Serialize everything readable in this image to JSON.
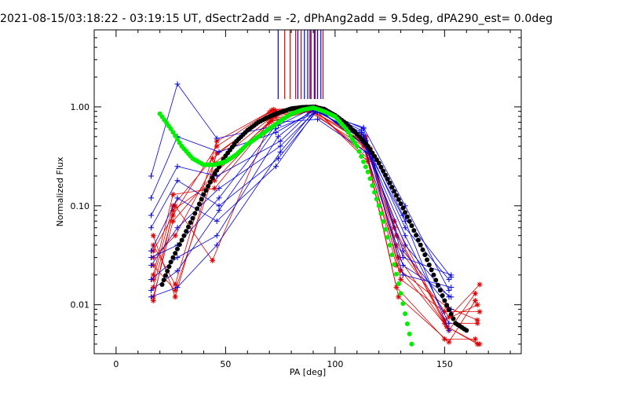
{
  "chart_data": {
    "type": "scatter",
    "title": "2021-08-15/03:18:22 - 03:19:15 UT, dSectr2add = -2, dPhAng2add = 9.5deg, dPA290_est=  0.0deg",
    "xlabel": "PA [deg]",
    "ylabel": "Normalized Flux",
    "xlim": [
      -10,
      185
    ],
    "ylim": [
      0.0032,
      6.0
    ],
    "yscale": "log",
    "grid": false,
    "legend": "none",
    "x_ticks": [
      {
        "value": 0,
        "label": "0"
      },
      {
        "value": 50,
        "label": "50"
      },
      {
        "value": 100,
        "label": "100"
      },
      {
        "value": 150,
        "label": "150"
      }
    ],
    "y_ticks": [
      {
        "value": 0.01,
        "label": "0.01"
      },
      {
        "value": 0.1,
        "label": "0.10"
      },
      {
        "value": 1.0,
        "label": "1.00"
      }
    ],
    "colors": {
      "red": "#dd0000",
      "blue": "#0000dd",
      "black": "#000000",
      "green": "#00ee00"
    },
    "vertical_lines": {
      "ymin": 1.2,
      "blue_x": [
        74,
        83,
        86,
        87.5,
        89,
        90.5,
        92,
        93.5
      ],
      "red_x": [
        77,
        79.5,
        82,
        84.5,
        88.5,
        91,
        94.5
      ]
    },
    "model_black": {
      "x": [
        21,
        25,
        30,
        35,
        40,
        45,
        50,
        55,
        60,
        65,
        70,
        75,
        80,
        85,
        90,
        95,
        100,
        105,
        110,
        115,
        120,
        125,
        130,
        135,
        140,
        145,
        150,
        155,
        160
      ],
      "y": [
        0.016,
        0.027,
        0.045,
        0.075,
        0.13,
        0.21,
        0.32,
        0.45,
        0.58,
        0.7,
        0.8,
        0.88,
        0.96,
        0.99,
        1.0,
        0.95,
        0.82,
        0.68,
        0.53,
        0.4,
        0.27,
        0.17,
        0.105,
        0.063,
        0.036,
        0.02,
        0.011,
        0.0065,
        0.0055
      ]
    },
    "model_green": {
      "x": [
        20,
        25,
        30,
        35,
        40,
        45,
        50,
        55,
        60,
        65,
        70,
        75,
        80,
        85,
        90,
        95,
        100,
        105,
        110,
        115,
        120,
        125,
        130,
        135
      ],
      "y": [
        0.85,
        0.6,
        0.4,
        0.3,
        0.26,
        0.26,
        0.28,
        0.33,
        0.42,
        0.5,
        0.6,
        0.72,
        0.85,
        0.93,
        0.98,
        0.9,
        0.8,
        0.6,
        0.4,
        0.22,
        0.1,
        0.04,
        0.013,
        0.004
      ]
    },
    "series": [
      {
        "color": "red",
        "x": [
          17,
          27,
          45,
          72,
          88,
          115,
          128,
          150,
          165
        ],
        "y": [
          0.03,
          0.05,
          0.27,
          0.82,
          0.95,
          0.34,
          0.05,
          0.007,
          0.01
        ]
      },
      {
        "color": "red",
        "x": [
          17,
          26,
          44,
          71,
          89,
          114,
          129,
          151,
          166
        ],
        "y": [
          0.012,
          0.07,
          0.2,
          0.75,
          0.92,
          0.46,
          0.03,
          0.006,
          0.004
        ]
      },
      {
        "color": "red",
        "x": [
          17,
          27,
          46,
          73,
          90,
          115,
          128,
          150,
          164
        ],
        "y": [
          0.05,
          0.012,
          0.34,
          0.9,
          0.98,
          0.28,
          0.015,
          0.0045,
          0.0045
        ]
      },
      {
        "color": "red",
        "x": [
          17,
          26,
          45,
          70,
          88,
          113,
          130,
          151,
          165
        ],
        "y": [
          0.02,
          0.13,
          0.15,
          0.7,
          0.9,
          0.4,
          0.022,
          0.0095,
          0.007
        ]
      },
      {
        "color": "red",
        "x": [
          17,
          27,
          44,
          72,
          91,
          116,
          128,
          152,
          166
        ],
        "y": [
          0.015,
          0.1,
          0.028,
          0.85,
          1.0,
          0.36,
          0.04,
          0.0075,
          0.016
        ]
      },
      {
        "color": "red",
        "x": [
          17,
          26,
          46,
          71,
          89,
          114,
          127,
          150,
          165
        ],
        "y": [
          0.035,
          0.08,
          0.4,
          0.92,
          0.96,
          0.5,
          0.06,
          0.0065,
          0.0065
        ]
      },
      {
        "color": "red",
        "x": [
          17,
          27,
          45,
          73,
          90,
          115,
          129,
          152,
          164
        ],
        "y": [
          0.025,
          0.014,
          0.22,
          0.8,
          0.97,
          0.3,
          0.012,
          0.0042,
          0.011
        ]
      },
      {
        "color": "red",
        "x": [
          17,
          26,
          44,
          70,
          88,
          113,
          128,
          151,
          165
        ],
        "y": [
          0.018,
          0.1,
          0.3,
          0.88,
          0.94,
          0.45,
          0.025,
          0.006,
          0.004
        ]
      },
      {
        "color": "red",
        "x": [
          17,
          27,
          46,
          72,
          91,
          116,
          130,
          150,
          166
        ],
        "y": [
          0.04,
          0.016,
          0.45,
          0.94,
          0.99,
          0.38,
          0.018,
          0.0085,
          0.0085
        ]
      },
      {
        "color": "red",
        "x": [
          17,
          26,
          45,
          71,
          89,
          114,
          127,
          152,
          164
        ],
        "y": [
          0.011,
          0.09,
          0.18,
          0.72,
          0.93,
          0.42,
          0.07,
          0.0055,
          0.013
        ]
      },
      {
        "color": "blue",
        "x": [
          16,
          28,
          46,
          74,
          90,
          112,
          132,
          152
        ],
        "y": [
          0.2,
          1.7,
          0.48,
          0.65,
          0.97,
          0.5,
          0.04,
          0.012
        ]
      },
      {
        "color": "blue",
        "x": [
          16,
          28,
          47,
          73,
          92,
          113,
          131,
          153
        ],
        "y": [
          0.12,
          0.5,
          0.35,
          0.55,
          0.96,
          0.6,
          0.03,
          0.02
        ]
      },
      {
        "color": "blue",
        "x": [
          16,
          28,
          46,
          75,
          91,
          112,
          132,
          152
        ],
        "y": [
          0.08,
          0.25,
          0.2,
          0.45,
          0.98,
          0.55,
          0.06,
          0.018
        ]
      },
      {
        "color": "blue",
        "x": [
          16,
          28,
          47,
          74,
          92,
          114,
          131,
          153
        ],
        "y": [
          0.06,
          0.18,
          0.1,
          0.3,
          0.92,
          0.45,
          0.02,
          0.015
        ]
      },
      {
        "color": "blue",
        "x": [
          16,
          28,
          46,
          73,
          91,
          113,
          132,
          152
        ],
        "y": [
          0.035,
          0.12,
          0.07,
          0.25,
          0.9,
          0.62,
          0.1,
          0.014
        ]
      },
      {
        "color": "blue",
        "x": [
          16,
          28,
          47,
          75,
          92,
          112,
          131,
          153
        ],
        "y": [
          0.025,
          0.06,
          0.15,
          0.4,
          0.95,
          0.58,
          0.08,
          0.019
        ]
      },
      {
        "color": "blue",
        "x": [
          16,
          28,
          46,
          74,
          91,
          114,
          132,
          152
        ],
        "y": [
          0.018,
          0.03,
          0.05,
          0.5,
          0.99,
          0.4,
          0.05,
          0.0065
        ]
      },
      {
        "color": "blue",
        "x": [
          16,
          28,
          47,
          73,
          92,
          113,
          131,
          153
        ],
        "y": [
          0.014,
          0.022,
          0.09,
          0.6,
          0.88,
          0.52,
          0.035,
          0.009
        ]
      },
      {
        "color": "blue",
        "x": [
          16,
          28,
          46,
          75,
          91,
          112,
          132,
          152
        ],
        "y": [
          0.012,
          0.015,
          0.04,
          0.35,
          0.94,
          0.48,
          0.07,
          0.0055
        ]
      },
      {
        "color": "blue",
        "x": [
          16,
          28,
          47,
          74,
          92,
          114,
          131,
          153
        ],
        "y": [
          0.03,
          0.04,
          0.12,
          0.7,
          0.75,
          0.35,
          0.025,
          0.012
        ]
      }
    ]
  }
}
